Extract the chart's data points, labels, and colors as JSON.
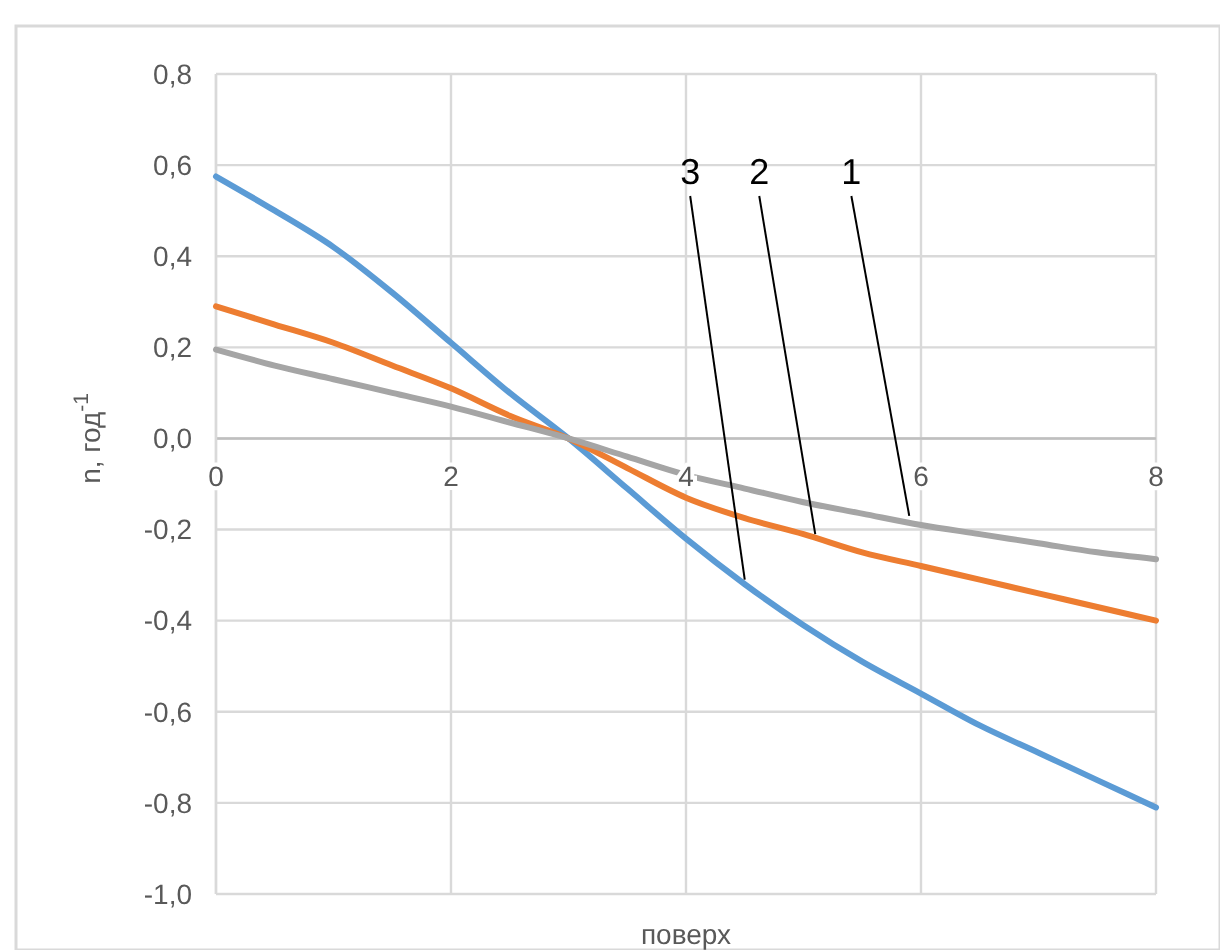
{
  "chart_data": {
    "type": "line",
    "xlabel": "поверх",
    "ylabel": "n, год$^{-1}$",
    "xlim": [
      0,
      8
    ],
    "xticks": [
      0,
      2,
      4,
      6,
      8
    ],
    "ylim": [
      -1,
      0.8
    ],
    "yticks": [
      {
        "value": -1,
        "label": "-1,0"
      },
      {
        "value": -0.8,
        "label": "-0,8"
      },
      {
        "value": -0.6,
        "label": "-0,6"
      },
      {
        "value": -0.4,
        "label": "-0,4"
      },
      {
        "value": -0.2,
        "label": "-0,2"
      },
      {
        "value": 0,
        "label": "0,0"
      },
      {
        "value": 0.2,
        "label": "0,2"
      },
      {
        "value": 0.4,
        "label": "0,4"
      },
      {
        "value": 0.6,
        "label": "0,6"
      },
      {
        "value": 0.8,
        "label": "0,8"
      }
    ],
    "grid": true,
    "x": [
      0,
      0.5,
      1,
      1.5,
      2,
      2.5,
      3,
      3.5,
      4,
      4.5,
      5,
      5.5,
      6,
      6.5,
      7,
      7.5,
      8
    ],
    "series": [
      {
        "color": "#5b9bd5",
        "values": [
          0.575,
          0.5,
          0.42,
          0.32,
          0.21,
          0.1,
          0,
          -0.11,
          -0.22,
          -0.32,
          -0.41,
          -0.49,
          -0.56,
          -0.63,
          -0.69,
          -0.75,
          -0.81
        ]
      },
      {
        "color": "#ed7d31",
        "values": [
          0.29,
          0.25,
          0.21,
          0.16,
          0.11,
          0.05,
          0,
          -0.065,
          -0.13,
          -0.175,
          -0.21,
          -0.25,
          -0.28,
          -0.31,
          -0.34,
          -0.37,
          -0.4
        ]
      },
      {
        "color": "#a5a5a5",
        "values": [
          0.195,
          0.16,
          0.13,
          0.1,
          0.07,
          0.035,
          0,
          -0.04,
          -0.08,
          -0.11,
          -0.14,
          -0.165,
          -0.19,
          -0.21,
          -0.23,
          -0.25,
          -0.265
        ]
      }
    ],
    "annotations": [
      {
        "text": "3",
        "x": 4.5,
        "y": -0.31
      },
      {
        "text": "2",
        "x": 5.1,
        "y": -0.21
      },
      {
        "text": "1",
        "x": 5.9,
        "y": -0.17
      }
    ]
  }
}
